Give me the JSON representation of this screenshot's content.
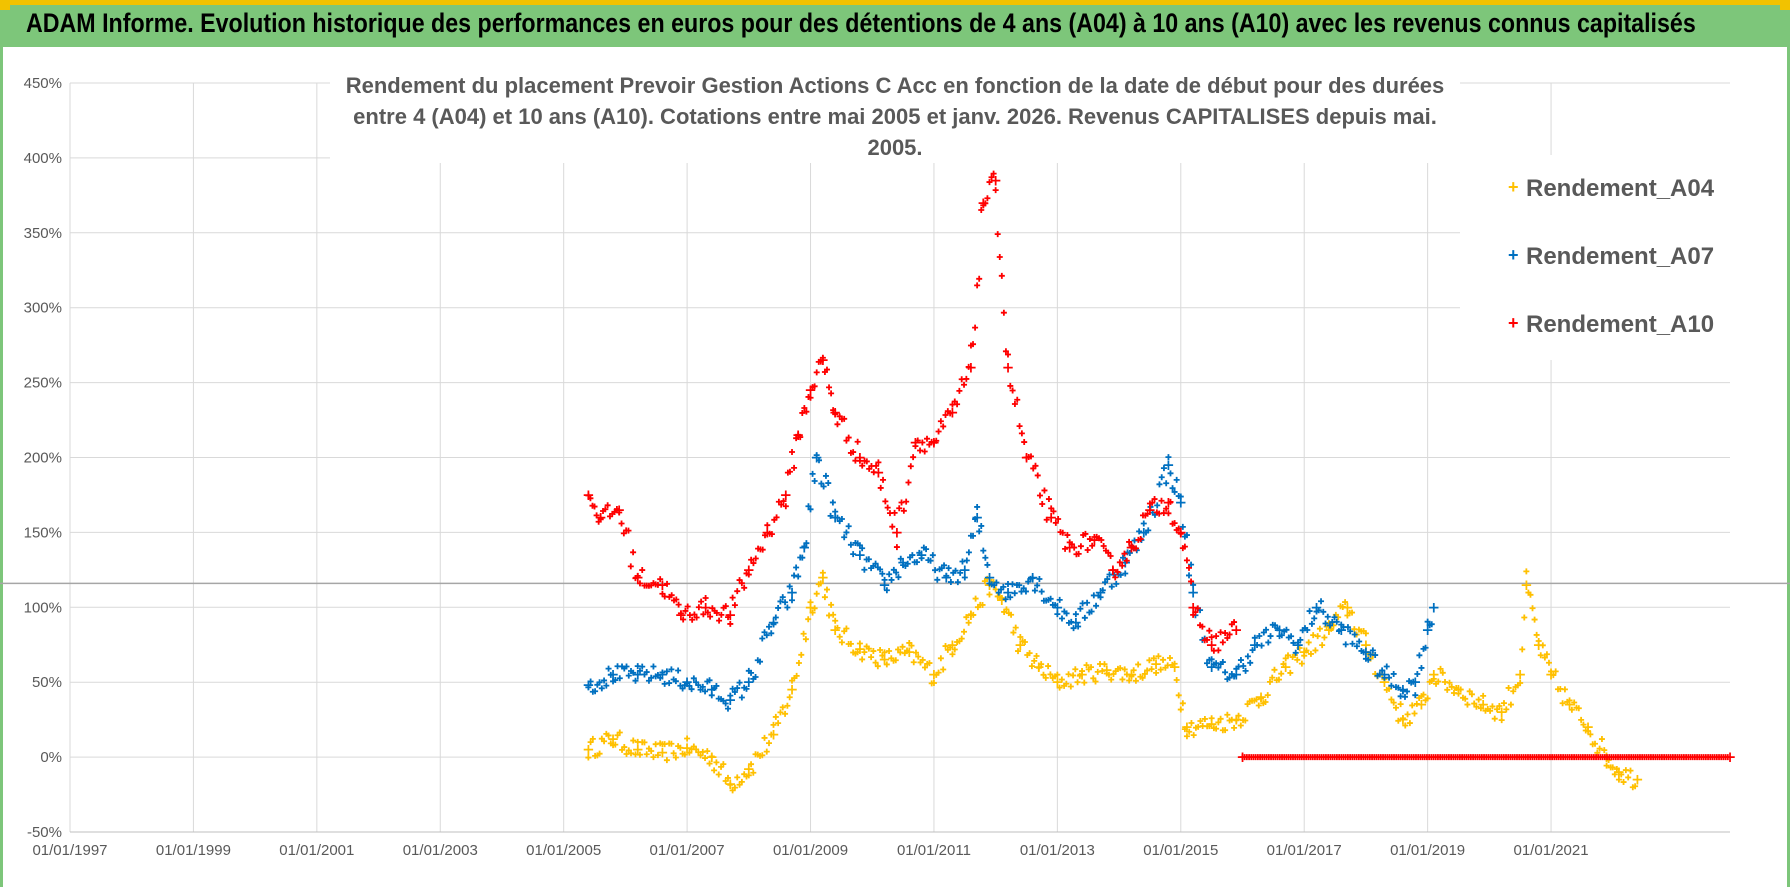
{
  "header": {
    "title": "ADAM Informe. Evolution historique des performances en euros pour des détentions de 4 ans (A04) à 10 ans (A10) avec les revenus connus capitalisés"
  },
  "colors": {
    "header_bg": "#7dc67a",
    "accent": "#f2c200",
    "A04": "#ffc000",
    "A07": "#0070c0",
    "A10": "#ff0000",
    "grid": "#d9d9d9",
    "text": "#595959"
  },
  "chart_data": {
    "type": "scatter",
    "title_line1": "Rendement du placement Prevoir Gestion Actions C Acc en fonction de la date de début pour des durées",
    "title_line2": "entre 4 (A04) et 10 ans (A10).  Cotations entre mai 2005 et janv. 2026. Revenus CAPITALISES depuis mai. 2005.",
    "x_axis": {
      "min_year": 1997.0,
      "max_year": 2023.9,
      "tick_years": [
        1997,
        1999,
        2001,
        2003,
        2005,
        2007,
        2009,
        2011,
        2013,
        2015,
        2017,
        2019,
        2021
      ],
      "tick_labels": [
        "01/01/1997",
        "01/01/1999",
        "01/01/2001",
        "01/01/2003",
        "01/01/2005",
        "01/01/2007",
        "01/01/2009",
        "01/01/2011",
        "01/01/2013",
        "01/01/2015",
        "01/01/2017",
        "01/01/2019",
        "01/01/2021"
      ]
    },
    "y_axis": {
      "min": -50,
      "max": 450,
      "ticks": [
        -50,
        0,
        50,
        100,
        150,
        200,
        250,
        300,
        350,
        400,
        450
      ],
      "tick_labels": [
        "-50%",
        "0%",
        "50%",
        "100%",
        "150%",
        "200%",
        "250%",
        "300%",
        "350%",
        "400%",
        "450%"
      ]
    },
    "reference_line_y": 116,
    "legend": [
      "Rendement_A04",
      "Rendement_A07",
      "Rendement_A10"
    ],
    "series": [
      {
        "name": "Rendement_A04",
        "color": "#ffc000",
        "points": [
          [
            2005.4,
            5
          ],
          [
            2005.8,
            12
          ],
          [
            2006.2,
            5
          ],
          [
            2006.6,
            3
          ],
          [
            2007.0,
            6
          ],
          [
            2007.4,
            0
          ],
          [
            2007.7,
            -18
          ],
          [
            2008.0,
            -8
          ],
          [
            2008.4,
            15
          ],
          [
            2008.7,
            45
          ],
          [
            2009.0,
            100
          ],
          [
            2009.2,
            120
          ],
          [
            2009.4,
            85
          ],
          [
            2009.8,
            72
          ],
          [
            2010.2,
            65
          ],
          [
            2010.6,
            70
          ],
          [
            2011.0,
            55
          ],
          [
            2011.3,
            75
          ],
          [
            2011.6,
            95
          ],
          [
            2011.9,
            115
          ],
          [
            2012.1,
            105
          ],
          [
            2012.4,
            75
          ],
          [
            2012.7,
            60
          ],
          [
            2013.0,
            50
          ],
          [
            2013.4,
            55
          ],
          [
            2013.8,
            58
          ],
          [
            2014.2,
            55
          ],
          [
            2014.6,
            62
          ],
          [
            2014.9,
            60
          ],
          [
            2015.1,
            20
          ],
          [
            2015.5,
            22
          ],
          [
            2015.9,
            25
          ],
          [
            2016.3,
            40
          ],
          [
            2016.7,
            60
          ],
          [
            2017.0,
            70
          ],
          [
            2017.4,
            85
          ],
          [
            2017.7,
            100
          ],
          [
            2018.0,
            75
          ],
          [
            2018.3,
            50
          ],
          [
            2018.6,
            25
          ],
          [
            2018.9,
            35
          ],
          [
            2019.1,
            55
          ],
          [
            2019.5,
            45
          ],
          [
            2019.9,
            35
          ],
          [
            2020.2,
            30
          ],
          [
            2020.5,
            55
          ],
          [
            2020.6,
            115
          ],
          [
            2020.8,
            75
          ],
          [
            2021.0,
            55
          ],
          [
            2021.3,
            35
          ],
          [
            2021.6,
            20
          ],
          [
            2021.9,
            0
          ],
          [
            2022.1,
            -10
          ],
          [
            2022.4,
            -15
          ]
        ]
      },
      {
        "name": "Rendement_A07",
        "color": "#0070c0",
        "points": [
          [
            2005.4,
            48
          ],
          [
            2005.8,
            55
          ],
          [
            2006.2,
            55
          ],
          [
            2006.6,
            55
          ],
          [
            2007.0,
            50
          ],
          [
            2007.4,
            45
          ],
          [
            2007.7,
            38
          ],
          [
            2008.0,
            50
          ],
          [
            2008.4,
            90
          ],
          [
            2008.7,
            110
          ],
          [
            2008.9,
            140
          ],
          [
            2009.1,
            200
          ],
          [
            2009.4,
            160
          ],
          [
            2009.8,
            135
          ],
          [
            2010.2,
            115
          ],
          [
            2010.5,
            130
          ],
          [
            2010.8,
            135
          ],
          [
            2011.2,
            120
          ],
          [
            2011.5,
            125
          ],
          [
            2011.7,
            160
          ],
          [
            2011.9,
            120
          ],
          [
            2012.2,
            110
          ],
          [
            2012.6,
            120
          ],
          [
            2013.0,
            100
          ],
          [
            2013.3,
            90
          ],
          [
            2013.7,
            110
          ],
          [
            2014.1,
            130
          ],
          [
            2014.4,
            150
          ],
          [
            2014.8,
            195
          ],
          [
            2015.0,
            170
          ],
          [
            2015.2,
            110
          ],
          [
            2015.5,
            60
          ],
          [
            2015.9,
            55
          ],
          [
            2016.2,
            75
          ],
          [
            2016.6,
            85
          ],
          [
            2016.9,
            75
          ],
          [
            2017.2,
            100
          ],
          [
            2017.6,
            85
          ],
          [
            2018.0,
            70
          ],
          [
            2018.3,
            55
          ],
          [
            2018.6,
            45
          ],
          [
            2018.8,
            50
          ],
          [
            2019.0,
            85
          ],
          [
            2019.1,
            100
          ]
        ]
      },
      {
        "name": "Rendement_A10",
        "color": "#ff0000",
        "points": [
          [
            2005.4,
            175
          ],
          [
            2005.6,
            160
          ],
          [
            2005.9,
            165
          ],
          [
            2006.2,
            120
          ],
          [
            2006.6,
            115
          ],
          [
            2006.9,
            95
          ],
          [
            2007.3,
            100
          ],
          [
            2007.7,
            95
          ],
          [
            2008.0,
            125
          ],
          [
            2008.3,
            150
          ],
          [
            2008.6,
            175
          ],
          [
            2008.8,
            215
          ],
          [
            2009.0,
            245
          ],
          [
            2009.2,
            265
          ],
          [
            2009.4,
            230
          ],
          [
            2009.8,
            200
          ],
          [
            2010.1,
            190
          ],
          [
            2010.4,
            150
          ],
          [
            2010.7,
            210
          ],
          [
            2011.0,
            210
          ],
          [
            2011.3,
            230
          ],
          [
            2011.6,
            260
          ],
          [
            2011.8,
            370
          ],
          [
            2012.0,
            385
          ],
          [
            2012.2,
            260
          ],
          [
            2012.5,
            200
          ],
          [
            2012.9,
            160
          ],
          [
            2013.2,
            140
          ],
          [
            2013.6,
            145
          ],
          [
            2013.9,
            125
          ],
          [
            2014.2,
            140
          ],
          [
            2014.5,
            165
          ],
          [
            2014.8,
            170
          ],
          [
            2015.0,
            150
          ],
          [
            2015.2,
            100
          ],
          [
            2015.5,
            75
          ],
          [
            2015.9,
            85
          ]
        ]
      },
      {
        "name": "Rendement_A10",
        "color": "#ff0000",
        "points": [
          [
            2016.0,
            0
          ],
          [
            2023.9,
            0
          ]
        ]
      }
    ]
  }
}
